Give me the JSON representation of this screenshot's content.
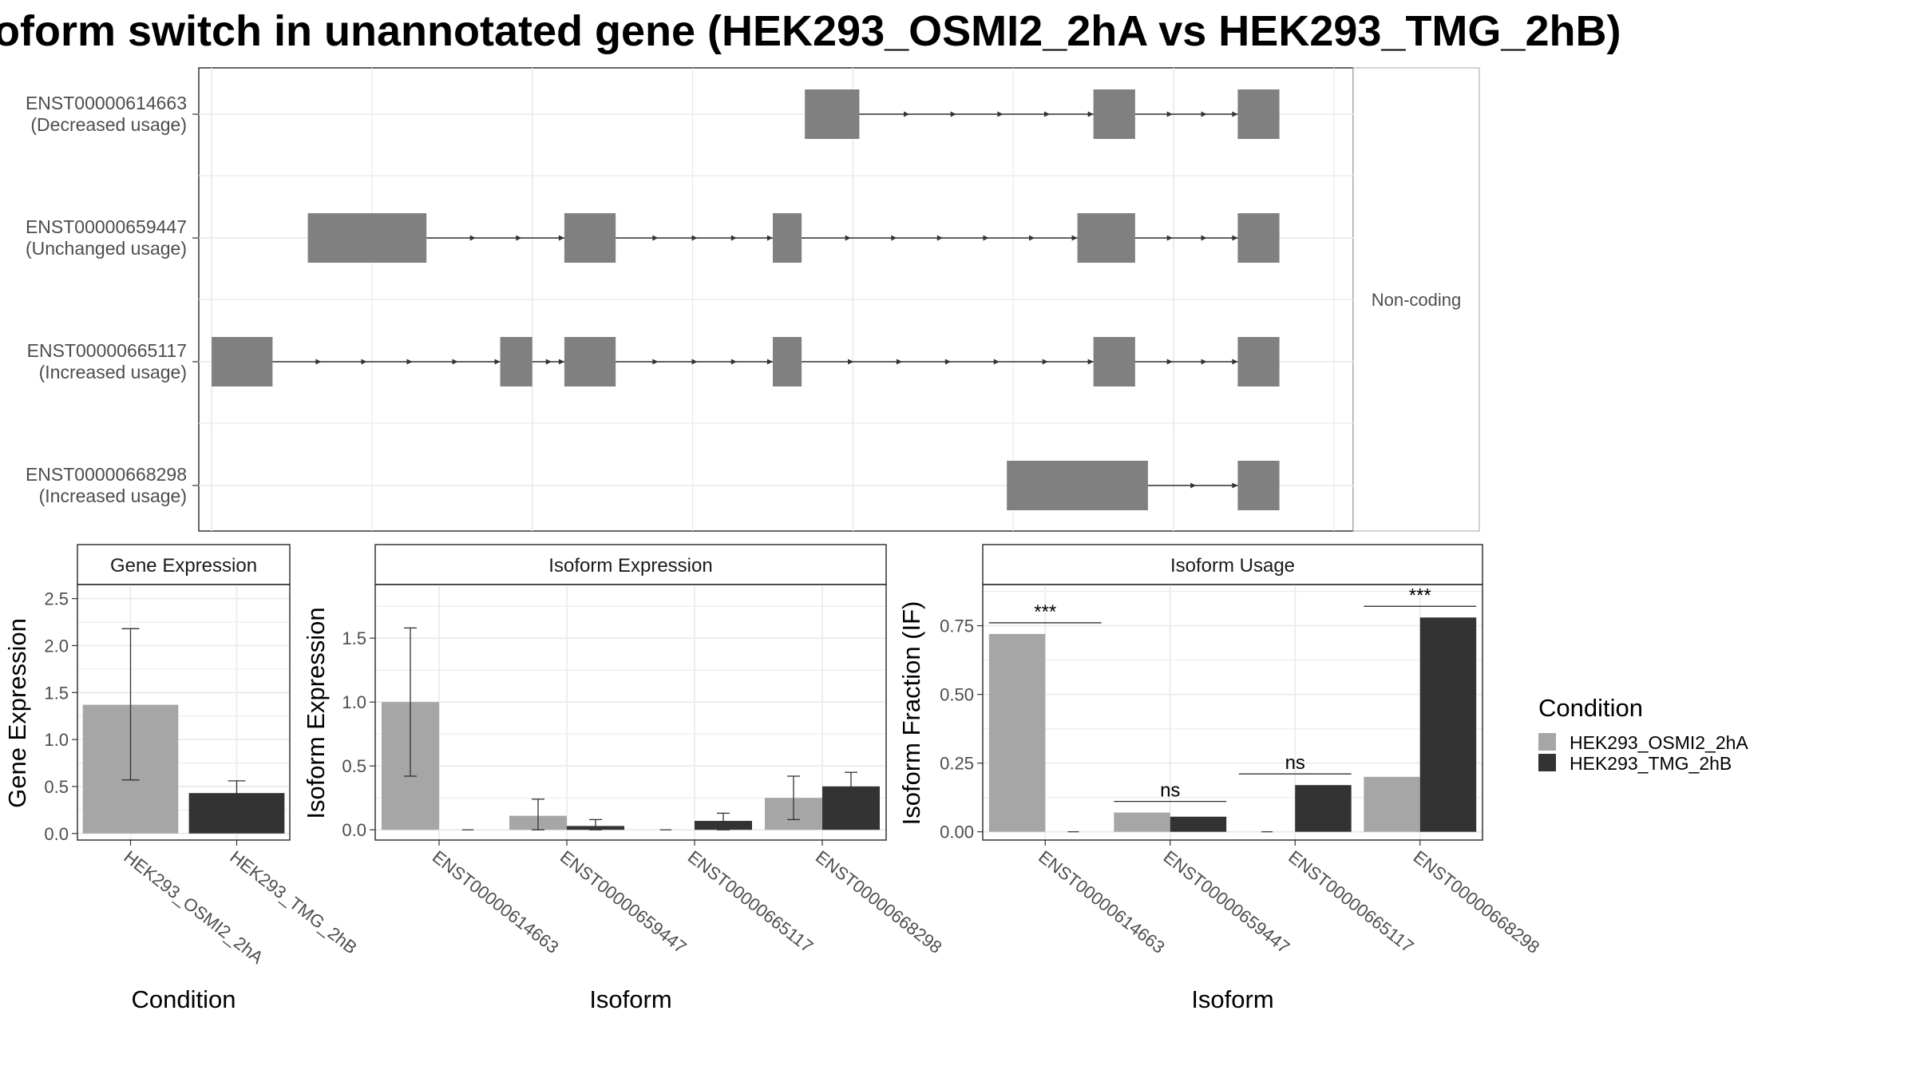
{
  "title": "oform switch in unannotated gene (HEK293_OSMI2_2hA vs HEK293_TMG_2hB)",
  "colors": {
    "condition_a": "#a6a6a6",
    "condition_b": "#333333",
    "exon": "#808080",
    "grid": "#ebebeb",
    "panel_border": "#333333"
  },
  "legend": {
    "title": "Condition",
    "items": [
      {
        "label": "HEK293_OSMI2_2hA",
        "color": "#a6a6a6"
      },
      {
        "label": "HEK293_TMG_2hB",
        "color": "#333333"
      }
    ]
  },
  "chart_data": [
    {
      "type": "gene-structure",
      "facet_label": "Non-coding",
      "isoforms": [
        {
          "id": "ENST00000614663",
          "usage": "(Decreased usage)",
          "exons": [
            [
              1.85,
              2.02
            ],
            [
              2.75,
              2.88
            ],
            [
              3.2,
              3.33
            ]
          ]
        },
        {
          "id": "ENST00000659447",
          "usage": "(Unchanged usage)",
          "exons": [
            [
              0.3,
              0.67
            ],
            [
              1.1,
              1.26
            ],
            [
              1.75,
              1.84
            ],
            [
              2.7,
              2.88
            ],
            [
              3.2,
              3.33
            ]
          ]
        },
        {
          "id": "ENST00000665117",
          "usage": "(Increased usage)",
          "exons": [
            [
              0.0,
              0.19
            ],
            [
              0.9,
              1.0
            ],
            [
              1.1,
              1.26
            ],
            [
              1.75,
              1.84
            ],
            [
              2.75,
              2.88
            ],
            [
              3.2,
              3.33
            ]
          ]
        },
        {
          "id": "ENST00000668298",
          "usage": "(Increased usage)",
          "exons": [
            [
              2.48,
              2.92
            ],
            [
              3.2,
              3.33
            ]
          ]
        }
      ]
    },
    {
      "type": "bar",
      "strip": "Gene Expression",
      "xlabel": "Condition",
      "ylabel": "Gene Expression",
      "ylim": [
        -0.07,
        2.65
      ],
      "yticks": [
        "0.0",
        "0.5",
        "1.0",
        "1.5",
        "2.0",
        "2.5"
      ],
      "categories": [
        "HEK293_OSMI2_2hA",
        "HEK293_TMG_2hB"
      ],
      "values": [
        1.37,
        0.43
      ],
      "errors_low": [
        0.57,
        0.32
      ],
      "errors_high": [
        2.18,
        0.56
      ]
    },
    {
      "type": "bar",
      "strip": "Isoform Expression",
      "xlabel": "Isoform",
      "ylabel": "Isoform Expression",
      "ylim": [
        -0.08,
        1.92
      ],
      "yticks": [
        "0.0",
        "0.5",
        "1.0",
        "1.5"
      ],
      "categories": [
        "ENST00000614663",
        "ENST00000659447",
        "ENST00000665117",
        "ENST00000668298"
      ],
      "series": [
        {
          "name": "HEK293_OSMI2_2hA",
          "values": [
            1.0,
            0.11,
            0.0,
            0.25
          ],
          "errors_low": [
            0.42,
            0.0,
            null,
            0.08
          ],
          "errors_high": [
            1.58,
            0.24,
            null,
            0.42
          ]
        },
        {
          "name": "HEK293_TMG_2hB",
          "values": [
            0.0,
            0.03,
            0.07,
            0.34
          ],
          "errors_low": [
            null,
            0.0,
            0.0,
            0.22
          ],
          "errors_high": [
            null,
            0.08,
            0.13,
            0.45
          ]
        }
      ]
    },
    {
      "type": "bar",
      "strip": "Isoform Usage",
      "xlabel": "Isoform",
      "ylabel": "Isoform Fraction (IF)",
      "ylim": [
        -0.03,
        0.9
      ],
      "yticks": [
        "0.00",
        "0.25",
        "0.50",
        "0.75"
      ],
      "categories": [
        "ENST00000614663",
        "ENST00000659447",
        "ENST00000665117",
        "ENST00000668298"
      ],
      "series": [
        {
          "name": "HEK293_OSMI2_2hA",
          "values": [
            0.72,
            0.07,
            0.0,
            0.2
          ]
        },
        {
          "name": "HEK293_TMG_2hB",
          "values": [
            0.0,
            0.055,
            0.17,
            0.78
          ]
        }
      ],
      "significance": [
        "***",
        "ns",
        "ns",
        "***"
      ]
    }
  ]
}
